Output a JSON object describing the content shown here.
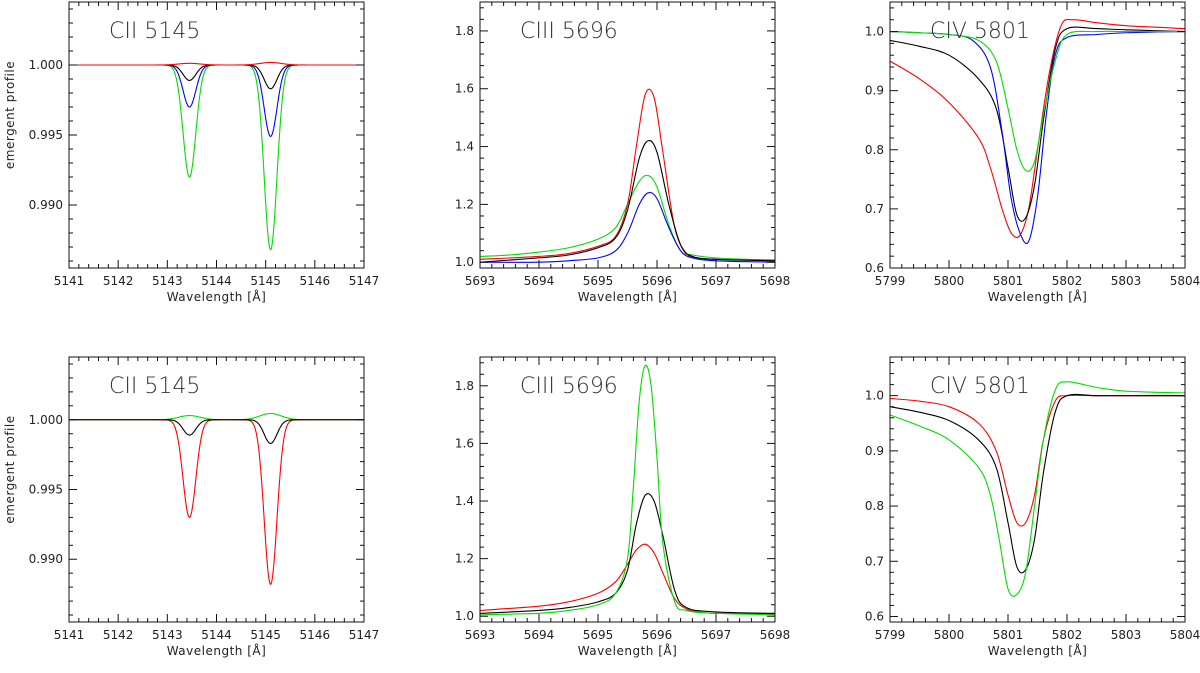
{
  "chart_data": [
    {
      "type": "line",
      "panel": "top-left",
      "title": "CII 5145",
      "xlabel": "Wavelength [Å]",
      "ylabel": "emergent profile",
      "xlim": [
        5141,
        5147
      ],
      "ylim": [
        0.9855,
        1.0045
      ],
      "xticks": [
        5141,
        5142,
        5143,
        5144,
        5145,
        5146,
        5147
      ],
      "xtick_labels": [
        "5141",
        "5142",
        "5143",
        "5144",
        "5145",
        "5146",
        "5147"
      ],
      "yticks": [
        0.99,
        0.995,
        1.0
      ],
      "ytick_labels": [
        "0.990",
        "0.995",
        "1.000"
      ],
      "grid": false,
      "series": [
        {
          "color": "#00dd00",
          "kind": "gauss",
          "base": 1.0,
          "lines": [
            [
              5143.45,
              -0.008,
              0.13
            ],
            [
              5145.1,
              -0.0132,
              0.13
            ]
          ]
        },
        {
          "color": "#0000ff",
          "kind": "gauss",
          "base": 1.0,
          "lines": [
            [
              5143.45,
              -0.003,
              0.13
            ],
            [
              5145.1,
              -0.0051,
              0.13
            ]
          ]
        },
        {
          "color": "#000000",
          "kind": "gauss",
          "base": 1.0,
          "lines": [
            [
              5143.45,
              -0.0011,
              0.13
            ],
            [
              5145.1,
              -0.0017,
              0.13
            ]
          ]
        },
        {
          "color": "#ff0000",
          "kind": "gauss",
          "base": 1.0,
          "lines": [
            [
              5143.45,
              0.00012,
              0.22
            ],
            [
              5145.1,
              0.00018,
              0.22
            ]
          ]
        }
      ]
    },
    {
      "type": "line",
      "panel": "top-middle",
      "title": "CIII 5696",
      "xlabel": "Wavelength [Å]",
      "ylabel": "",
      "xlim": [
        5693,
        5698
      ],
      "ylim": [
        0.98,
        1.9
      ],
      "xticks": [
        5693,
        5694,
        5695,
        5696,
        5697,
        5698
      ],
      "xtick_labels": [
        "5693",
        "5694",
        "5695",
        "5696",
        "5697",
        "5698"
      ],
      "yticks": [
        1.0,
        1.2,
        1.4,
        1.6,
        1.8
      ],
      "ytick_labels": [
        "1.0",
        "1.2",
        "1.4",
        "1.6",
        "1.8"
      ],
      "grid": false,
      "series": [
        {
          "color": "#00dd00",
          "kind": "points",
          "x": [
            5693,
            5693.5,
            5694,
            5694.5,
            5695,
            5695.3,
            5695.5,
            5695.7,
            5695.85,
            5696,
            5696.2,
            5696.4,
            5696.6,
            5697,
            5697.5,
            5698
          ],
          "y": [
            1.02,
            1.025,
            1.035,
            1.05,
            1.08,
            1.12,
            1.2,
            1.28,
            1.3,
            1.26,
            1.13,
            1.04,
            1.025,
            1.015,
            1.01,
            1.008
          ]
        },
        {
          "color": "#ff0000",
          "kind": "points",
          "x": [
            5693,
            5694,
            5694.5,
            5695,
            5695.3,
            5695.5,
            5695.65,
            5695.8,
            5695.95,
            5696.1,
            5696.3,
            5696.5,
            5696.7,
            5697,
            5698
          ],
          "y": [
            1.01,
            1.02,
            1.03,
            1.055,
            1.09,
            1.2,
            1.4,
            1.58,
            1.57,
            1.38,
            1.12,
            1.03,
            1.015,
            1.01,
            1.005
          ]
        },
        {
          "color": "#000000",
          "kind": "points",
          "x": [
            5693,
            5694,
            5694.5,
            5695,
            5695.3,
            5695.5,
            5695.7,
            5695.85,
            5696,
            5696.2,
            5696.4,
            5696.6,
            5697,
            5698
          ],
          "y": [
            1.0,
            1.015,
            1.025,
            1.05,
            1.085,
            1.18,
            1.36,
            1.42,
            1.38,
            1.2,
            1.06,
            1.02,
            1.01,
            1.005
          ]
        },
        {
          "color": "#0000ff",
          "kind": "points",
          "x": [
            5693,
            5694,
            5694.5,
            5695,
            5695.3,
            5695.5,
            5695.7,
            5695.85,
            5696,
            5696.2,
            5696.4,
            5696.6,
            5697,
            5698
          ],
          "y": [
            1.0,
            1.0,
            1.005,
            1.015,
            1.04,
            1.1,
            1.2,
            1.24,
            1.22,
            1.12,
            1.04,
            1.015,
            1.005,
            1.0
          ]
        }
      ]
    },
    {
      "type": "line",
      "panel": "top-right",
      "title": "CIV 5801",
      "xlabel": "Wavelength [Å]",
      "ylabel": "",
      "xlim": [
        5799,
        5804
      ],
      "ylim": [
        0.6,
        1.05
      ],
      "xticks": [
        5799,
        5800,
        5801,
        5802,
        5803,
        5804
      ],
      "xtick_labels": [
        "5799",
        "5800",
        "5801",
        "5802",
        "5803",
        "5804"
      ],
      "yticks": [
        0.6,
        0.7,
        0.8,
        0.9,
        1.0
      ],
      "ytick_labels": [
        "0.6",
        "0.7",
        "0.8",
        "0.9",
        "1.0"
      ],
      "grid": false,
      "series": [
        {
          "color": "#ff0000",
          "kind": "points",
          "x": [
            5799,
            5799.5,
            5800,
            5800.5,
            5800.7,
            5800.9,
            5801.05,
            5801.2,
            5801.35,
            5801.5,
            5801.7,
            5801.9,
            5802.1,
            5802.5,
            5803,
            5804
          ],
          "y": [
            0.95,
            0.92,
            0.88,
            0.82,
            0.77,
            0.7,
            0.66,
            0.655,
            0.7,
            0.8,
            0.93,
            1.01,
            1.02,
            1.015,
            1.01,
            1.005
          ]
        },
        {
          "color": "#000000",
          "kind": "points",
          "x": [
            5799,
            5799.5,
            5800,
            5800.5,
            5800.8,
            5801,
            5801.15,
            5801.3,
            5801.45,
            5801.6,
            5801.8,
            5802,
            5802.5,
            5803,
            5804
          ],
          "y": [
            0.985,
            0.975,
            0.96,
            0.92,
            0.87,
            0.77,
            0.69,
            0.685,
            0.74,
            0.85,
            0.97,
            1.005,
            1.005,
            1.003,
            1.0
          ]
        },
        {
          "color": "#0000ff",
          "kind": "points",
          "x": [
            5799,
            5799.5,
            5800,
            5800.4,
            5800.7,
            5800.9,
            5801.05,
            5801.2,
            5801.35,
            5801.5,
            5801.65,
            5801.8,
            5802,
            5802.5,
            5803,
            5804
          ],
          "y": [
            1.0,
            0.998,
            0.995,
            0.985,
            0.94,
            0.83,
            0.72,
            0.66,
            0.645,
            0.72,
            0.86,
            0.96,
            0.99,
            0.995,
            0.998,
            1.0
          ]
        },
        {
          "color": "#00dd00",
          "kind": "points",
          "x": [
            5799,
            5799.5,
            5800,
            5800.5,
            5800.8,
            5801,
            5801.15,
            5801.3,
            5801.45,
            5801.6,
            5801.8,
            5802,
            5802.5,
            5803,
            5804
          ],
          "y": [
            1.0,
            0.998,
            0.995,
            0.985,
            0.95,
            0.87,
            0.8,
            0.765,
            0.78,
            0.86,
            0.95,
            0.995,
            1.0,
            1.0,
            1.0
          ]
        }
      ]
    },
    {
      "type": "line",
      "panel": "bottom-left",
      "title": "CII 5145",
      "xlabel": "Wavelength [Å]",
      "ylabel": "emergent profile",
      "xlim": [
        5141,
        5147
      ],
      "ylim": [
        0.9855,
        1.0045
      ],
      "xticks": [
        5141,
        5142,
        5143,
        5144,
        5145,
        5146,
        5147
      ],
      "xtick_labels": [
        "5141",
        "5142",
        "5143",
        "5144",
        "5145",
        "5146",
        "5147"
      ],
      "yticks": [
        0.99,
        0.995,
        1.0
      ],
      "ytick_labels": [
        "0.990",
        "0.995",
        "1.000"
      ],
      "grid": false,
      "series": [
        {
          "color": "#00dd00",
          "kind": "gauss",
          "base": 1.0,
          "lines": [
            [
              5143.45,
              0.0003,
              0.22
            ],
            [
              5145.1,
              0.00045,
              0.22
            ]
          ]
        },
        {
          "color": "#ff0000",
          "kind": "gauss",
          "base": 1.0,
          "lines": [
            [
              5143.45,
              -0.007,
              0.13
            ],
            [
              5145.1,
              -0.0118,
              0.13
            ]
          ]
        },
        {
          "color": "#000000",
          "kind": "gauss",
          "base": 1.0,
          "lines": [
            [
              5143.45,
              -0.0011,
              0.13
            ],
            [
              5145.1,
              -0.0017,
              0.13
            ]
          ]
        }
      ]
    },
    {
      "type": "line",
      "panel": "bottom-middle",
      "title": "CIII 5696",
      "xlabel": "Wavelength [Å]",
      "ylabel": "",
      "xlim": [
        5693,
        5698
      ],
      "ylim": [
        0.98,
        1.9
      ],
      "xticks": [
        5693,
        5694,
        5695,
        5696,
        5697,
        5698
      ],
      "xtick_labels": [
        "5693",
        "5694",
        "5695",
        "5696",
        "5697",
        "5698"
      ],
      "yticks": [
        1.0,
        1.2,
        1.4,
        1.6,
        1.8
      ],
      "ytick_labels": [
        "1.0",
        "1.2",
        "1.4",
        "1.6",
        "1.8"
      ],
      "grid": false,
      "series": [
        {
          "color": "#ff0000",
          "kind": "points",
          "x": [
            5693,
            5694,
            5694.5,
            5695,
            5695.3,
            5695.5,
            5695.65,
            5695.8,
            5695.95,
            5696.1,
            5696.3,
            5696.5,
            5696.7,
            5697,
            5698
          ],
          "y": [
            1.02,
            1.035,
            1.05,
            1.08,
            1.12,
            1.18,
            1.23,
            1.25,
            1.22,
            1.15,
            1.06,
            1.025,
            1.015,
            1.01,
            1.008
          ]
        },
        {
          "color": "#000000",
          "kind": "points",
          "x": [
            5693,
            5694,
            5694.5,
            5695,
            5695.3,
            5695.5,
            5695.65,
            5695.8,
            5695.95,
            5696.1,
            5696.3,
            5696.5,
            5697,
            5698
          ],
          "y": [
            1.01,
            1.02,
            1.03,
            1.05,
            1.08,
            1.16,
            1.32,
            1.42,
            1.4,
            1.28,
            1.09,
            1.03,
            1.015,
            1.01
          ]
        },
        {
          "color": "#00dd00",
          "kind": "points",
          "x": [
            5693,
            5694,
            5694.5,
            5695,
            5695.3,
            5695.5,
            5695.6,
            5695.7,
            5695.8,
            5695.9,
            5696,
            5696.1,
            5696.3,
            5696.5,
            5697,
            5698
          ],
          "y": [
            1.005,
            1.01,
            1.02,
            1.04,
            1.08,
            1.2,
            1.45,
            1.75,
            1.87,
            1.8,
            1.55,
            1.25,
            1.05,
            1.02,
            1.01,
            1.005
          ]
        }
      ]
    },
    {
      "type": "line",
      "panel": "bottom-right",
      "title": "CIV 5801",
      "xlabel": "Wavelength [Å]",
      "ylabel": "",
      "xlim": [
        5799,
        5804
      ],
      "ylim": [
        0.59,
        1.07
      ],
      "xticks": [
        5799,
        5800,
        5801,
        5802,
        5803,
        5804
      ],
      "xtick_labels": [
        "5799",
        "5800",
        "5801",
        "5802",
        "5803",
        "5804"
      ],
      "yticks": [
        0.6,
        0.7,
        0.8,
        0.9,
        1.0
      ],
      "ytick_labels": [
        "0.6",
        "0.7",
        "0.8",
        "0.9",
        "1.0"
      ],
      "grid": false,
      "series": [
        {
          "color": "#ff0000",
          "kind": "points",
          "x": [
            5799,
            5799.5,
            5800,
            5800.5,
            5800.8,
            5801,
            5801.15,
            5801.3,
            5801.45,
            5801.6,
            5801.8,
            5802,
            5802.5,
            5803,
            5804
          ],
          "y": [
            0.995,
            0.99,
            0.98,
            0.95,
            0.9,
            0.82,
            0.77,
            0.77,
            0.82,
            0.92,
            0.99,
            1.0,
            1.0,
            1.0,
            1.0
          ]
        },
        {
          "color": "#000000",
          "kind": "points",
          "x": [
            5799,
            5799.5,
            5800,
            5800.5,
            5800.8,
            5801,
            5801.15,
            5801.3,
            5801.45,
            5801.6,
            5801.8,
            5802,
            5802.5,
            5803,
            5804
          ],
          "y": [
            0.98,
            0.97,
            0.955,
            0.92,
            0.87,
            0.77,
            0.69,
            0.685,
            0.74,
            0.86,
            0.97,
            1.0,
            1.0,
            1.0,
            1.0
          ]
        },
        {
          "color": "#00dd00",
          "kind": "points",
          "x": [
            5799,
            5799.5,
            5800,
            5800.5,
            5800.7,
            5800.85,
            5801,
            5801.15,
            5801.3,
            5801.45,
            5801.6,
            5801.8,
            5802,
            5802.5,
            5803,
            5804
          ],
          "y": [
            0.965,
            0.945,
            0.92,
            0.87,
            0.82,
            0.74,
            0.65,
            0.64,
            0.68,
            0.8,
            0.92,
            1.01,
            1.025,
            1.015,
            1.008,
            1.005
          ]
        }
      ]
    }
  ]
}
